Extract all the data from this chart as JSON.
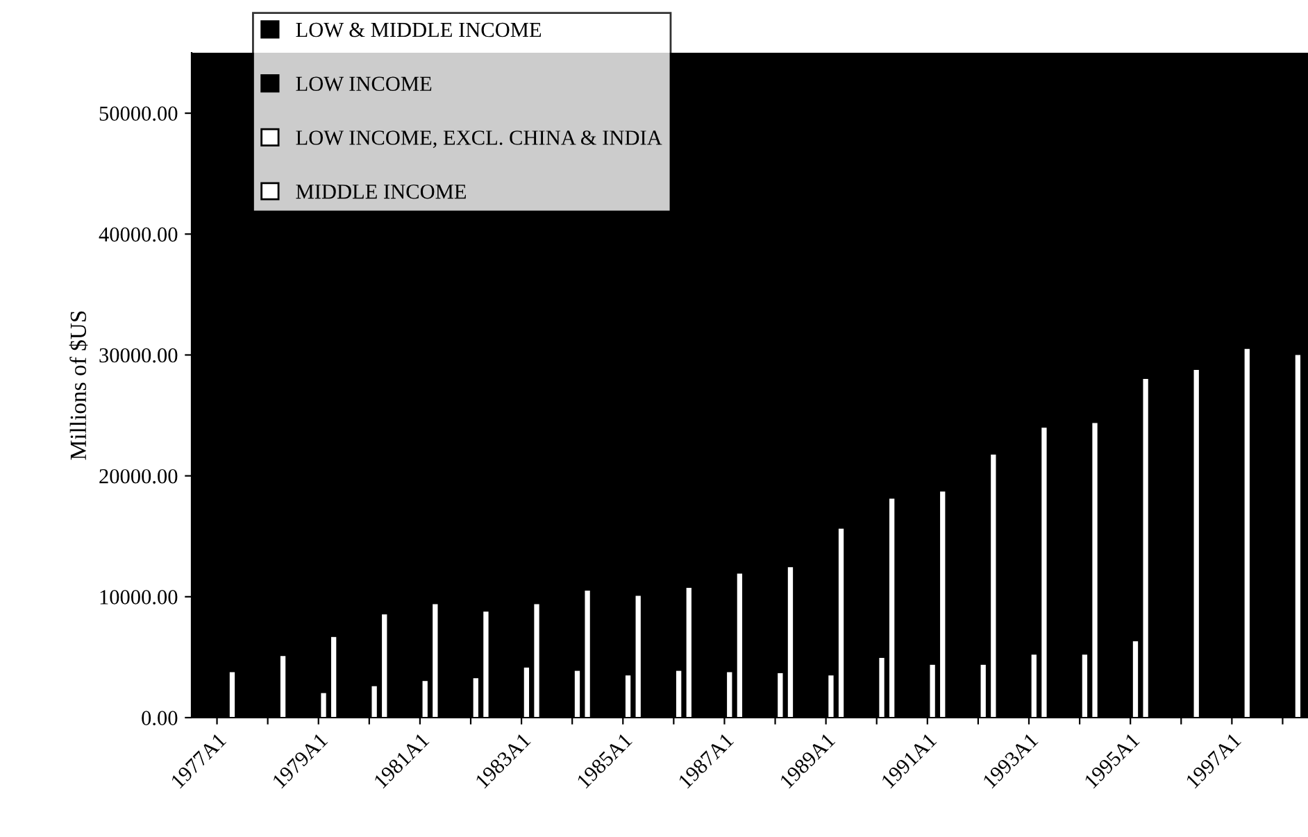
{
  "chart_data": {
    "type": "bar",
    "ylabel": "Millions of $US",
    "categories": [
      "1977A1",
      null,
      "1979A1",
      null,
      "1981A1",
      null,
      "1983A1",
      null,
      "1985A1",
      null,
      "1987A1",
      null,
      "1989A1",
      null,
      "1991A1",
      null,
      "1993A1",
      null,
      "1995A1",
      null,
      "1997A1",
      null
    ],
    "series": [
      {
        "name": "LOW & MIDDLE INCOME",
        "color": "#000000",
        "values": [
          null,
          null,
          null,
          null,
          null,
          null,
          null,
          null,
          null,
          null,
          null,
          null,
          null,
          null,
          null,
          null,
          null,
          null,
          null,
          null,
          null,
          null
        ]
      },
      {
        "name": "LOW INCOME",
        "color": "#000000",
        "values": [
          null,
          null,
          null,
          null,
          null,
          null,
          null,
          null,
          null,
          null,
          null,
          null,
          null,
          null,
          null,
          null,
          null,
          null,
          null,
          null,
          null,
          null
        ]
      },
      {
        "name": "LOW INCOME, EXCL. CHINA & INDIA",
        "color": "#ffffff",
        "values": [
          null,
          null,
          2030,
          2600,
          3030,
          3260,
          4140,
          3870,
          3490,
          3870,
          3760,
          3680,
          3490,
          4940,
          4370,
          4370,
          5210,
          5210,
          6320,
          null,
          null,
          null
        ]
      },
      {
        "name": "MIDDLE INCOME",
        "color": "#ffffff",
        "values": [
          3760,
          5090,
          6670,
          8540,
          9390,
          8770,
          9390,
          10500,
          10080,
          10730,
          11920,
          12450,
          15630,
          18120,
          18700,
          21760,
          23980,
          24370,
          28010,
          28770,
          30500,
          30000
        ]
      }
    ],
    "ylim": [
      0,
      55000
    ],
    "yticks": [
      {
        "value": 0,
        "label": "0.00"
      },
      {
        "value": 10000,
        "label": "10000.00"
      },
      {
        "value": 20000,
        "label": "20000.00"
      },
      {
        "value": 30000,
        "label": "30000.00"
      },
      {
        "value": 40000,
        "label": "40000.00"
      },
      {
        "value": 50000,
        "label": "50000.00"
      }
    ],
    "legend": "top left",
    "grid": false
  }
}
